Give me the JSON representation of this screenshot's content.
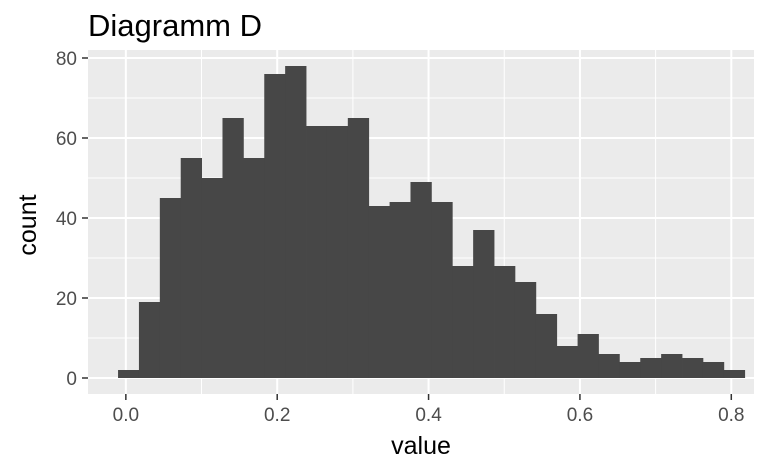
{
  "chart_data": {
    "type": "bar",
    "title": "Diagramm D",
    "xlabel": "value",
    "ylabel": "count",
    "xlim": [
      -0.05,
      0.83
    ],
    "ylim": [
      -4,
      82
    ],
    "x_ticks": [
      0.0,
      0.2,
      0.4,
      0.6,
      0.8
    ],
    "x_tick_labels": [
      "0.0",
      "0.2",
      "0.4",
      "0.6",
      "0.8"
    ],
    "y_ticks": [
      0,
      20,
      40,
      60,
      80
    ],
    "y_tick_labels": [
      "0",
      "20",
      "40",
      "60",
      "80"
    ],
    "bin_width": 0.0276,
    "bin_start": -0.0103,
    "values": [
      2,
      19,
      45,
      55,
      50,
      65,
      55,
      76,
      78,
      63,
      63,
      65,
      43,
      44,
      49,
      44,
      28,
      37,
      28,
      24,
      16,
      8,
      11,
      6,
      4,
      5,
      6,
      5,
      4,
      2
    ],
    "grid": true,
    "legend": "none",
    "colors": {
      "bar": "#474747",
      "panel": "#ebebeb",
      "grid": "#ffffff"
    }
  }
}
